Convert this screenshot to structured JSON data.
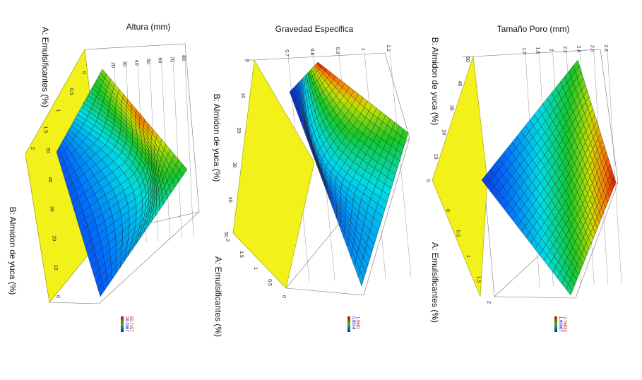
{
  "chart_data": [
    {
      "type": "surface",
      "title": "Altura (mm)",
      "xlabel": "A: Emulsificantes (%)",
      "ylabel": "B: Almidon de yuca (%)",
      "zlabel": "",
      "x_ticks": [
        "0",
        "0.5",
        "1",
        "1.5",
        "2"
      ],
      "y_ticks": [
        "50",
        "40",
        "30",
        "20",
        "10",
        "0"
      ],
      "z_ticks": [
        "20",
        "30",
        "40",
        "50",
        "60",
        "70",
        "80"
      ],
      "xlim": [
        0,
        2
      ],
      "ylim": [
        0,
        50
      ],
      "zlim": [
        20,
        80
      ],
      "legend_max": "60.7157",
      "legend_min": "29.2467",
      "colors": {
        "low": "#1f1fd0",
        "high": "#e00000",
        "contour_plane": "#f2f21a"
      }
    },
    {
      "type": "surface",
      "title": "Gravedad Especifica",
      "xlabel": "A: Emulsificantes (%)",
      "ylabel": "B: Almidon de yuca (%)",
      "zlabel": "",
      "x_ticks": [
        "2",
        "1.5",
        "1",
        "0.5",
        "0"
      ],
      "y_ticks": [
        "0",
        "10",
        "20",
        "30",
        "40",
        "50"
      ],
      "z_ticks": [
        "0.7",
        "0.8",
        "0.9",
        "1",
        "1.1"
      ],
      "xlim": [
        0,
        2
      ],
      "ylim": [
        0,
        50
      ],
      "zlim": [
        0.7,
        1.1
      ],
      "legend_max": "1.0681",
      "legend_min": "0.8014",
      "colors": {
        "low": "#1f1fd0",
        "high": "#e00000",
        "contour_plane": "#f2f21a"
      }
    },
    {
      "type": "surface",
      "title": "Tamaño Poro (mm)",
      "xlabel": "A: Emulsificantes (%)",
      "ylabel": "B: Almidon de yuca (%)",
      "zlabel": "",
      "x_ticks": [
        "0",
        "0.5",
        "1",
        "1.5",
        "2"
      ],
      "y_ticks": [
        "50",
        "40",
        "30",
        "20",
        "10",
        "0"
      ],
      "z_ticks": [
        "1.6",
        "1.8",
        "2",
        "2.2",
        "2.4",
        "2.6",
        "2.8"
      ],
      "xlim": [
        0,
        2
      ],
      "ylim": [
        0,
        50
      ],
      "zlim": [
        1.6,
        2.8
      ],
      "legend_max": "2.76833",
      "legend_min": "1.60067",
      "colors": {
        "low": "#1f1fd0",
        "high": "#e00000",
        "contour_plane": "#f2f21a"
      }
    }
  ]
}
